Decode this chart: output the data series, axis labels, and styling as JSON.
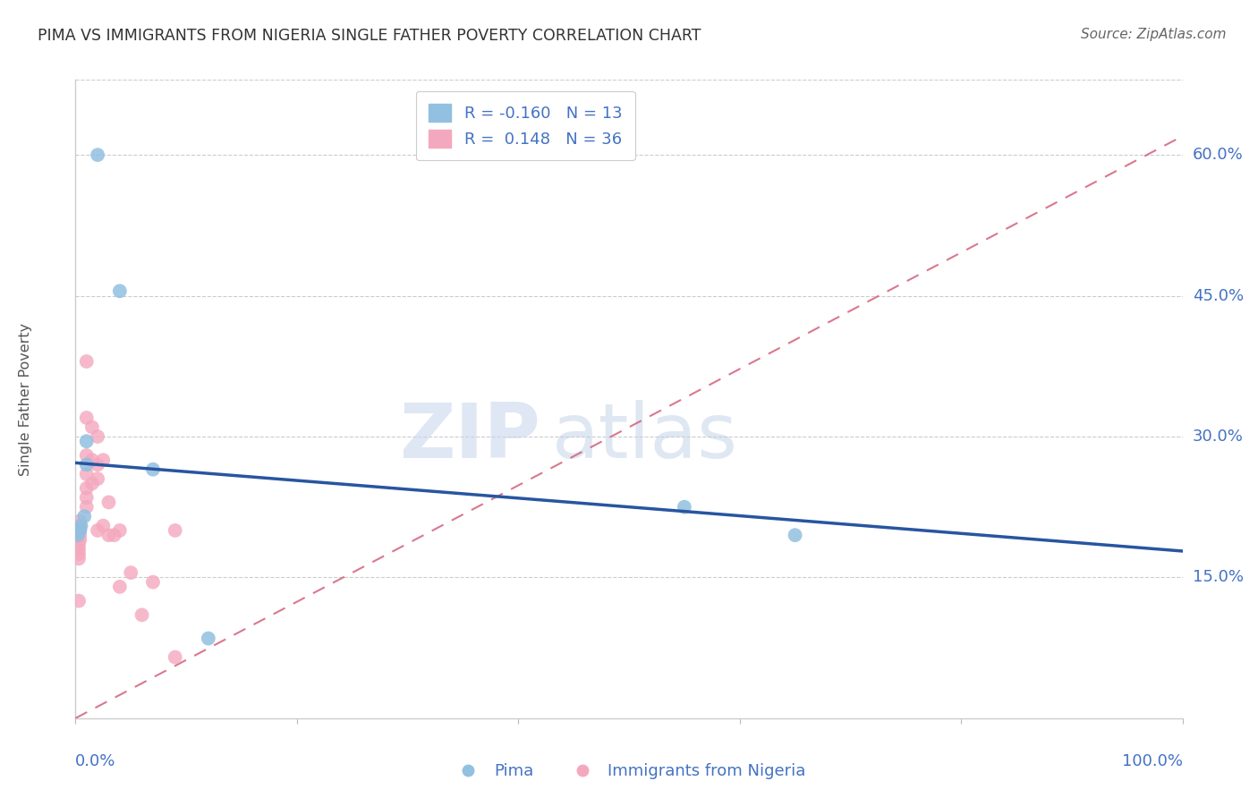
{
  "title": "PIMA VS IMMIGRANTS FROM NIGERIA SINGLE FATHER POVERTY CORRELATION CHART",
  "source": "Source: ZipAtlas.com",
  "ylabel": "Single Father Poverty",
  "yticks": [
    0.15,
    0.3,
    0.45,
    0.6
  ],
  "ytick_labels": [
    "15.0%",
    "30.0%",
    "45.0%",
    "60.0%"
  ],
  "xlim": [
    0.0,
    1.0
  ],
  "ylim": [
    0.0,
    0.68
  ],
  "legend_blue_R": "-0.160",
  "legend_blue_N": "13",
  "legend_pink_R": "0.148",
  "legend_pink_N": "36",
  "legend_label_blue": "Pima",
  "legend_label_pink": "Immigrants from Nigeria",
  "blue_color": "#92c0e0",
  "pink_color": "#f4a8be",
  "blue_line_color": "#2855a0",
  "pink_line_color": "#d4607a",
  "background_color": "#ffffff",
  "watermark_ZIP": "ZIP",
  "watermark_atlas": "atlas",
  "blue_line_x": [
    0.0,
    1.0
  ],
  "blue_line_y": [
    0.272,
    0.178
  ],
  "pink_line_x": [
    0.0,
    1.0
  ],
  "pink_line_y": [
    0.0,
    0.62
  ],
  "pima_x": [
    0.02,
    0.04,
    0.01,
    0.01,
    0.008,
    0.005,
    0.004,
    0.003,
    0.002,
    0.07,
    0.55,
    0.65,
    0.12
  ],
  "pima_y": [
    0.6,
    0.455,
    0.295,
    0.27,
    0.215,
    0.205,
    0.2,
    0.2,
    0.195,
    0.265,
    0.225,
    0.195,
    0.085
  ],
  "nigeria_x": [
    0.004,
    0.004,
    0.004,
    0.004,
    0.004,
    0.003,
    0.003,
    0.003,
    0.003,
    0.003,
    0.01,
    0.01,
    0.01,
    0.01,
    0.01,
    0.01,
    0.01,
    0.015,
    0.015,
    0.015,
    0.02,
    0.02,
    0.02,
    0.02,
    0.025,
    0.025,
    0.03,
    0.03,
    0.035,
    0.04,
    0.04,
    0.05,
    0.06,
    0.07,
    0.09,
    0.09
  ],
  "nigeria_y": [
    0.21,
    0.205,
    0.2,
    0.195,
    0.19,
    0.185,
    0.18,
    0.175,
    0.17,
    0.125,
    0.38,
    0.32,
    0.28,
    0.26,
    0.245,
    0.235,
    0.225,
    0.31,
    0.275,
    0.25,
    0.3,
    0.27,
    0.255,
    0.2,
    0.275,
    0.205,
    0.23,
    0.195,
    0.195,
    0.2,
    0.14,
    0.155,
    0.11,
    0.145,
    0.2,
    0.065
  ]
}
